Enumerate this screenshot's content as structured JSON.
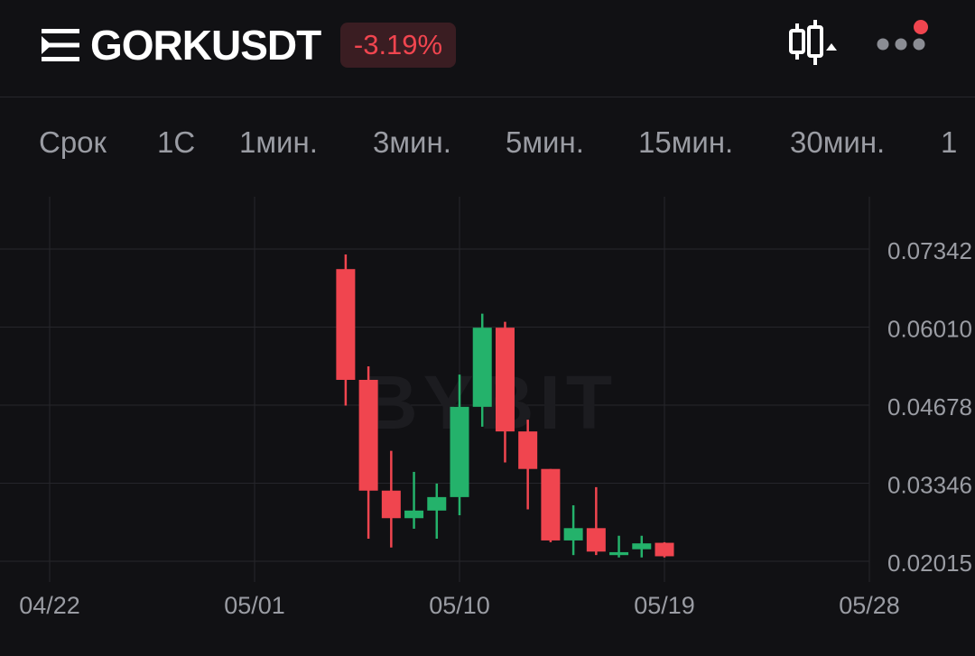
{
  "header": {
    "symbol": "GORKUSDT",
    "change": "-3.19%",
    "icons": [
      "menu-icon",
      "candlestick-chart-icon",
      "more-icon"
    ]
  },
  "tabs": [
    {
      "label": "Срок"
    },
    {
      "label": "1С"
    },
    {
      "label": "1мин."
    },
    {
      "label": "3мин."
    },
    {
      "label": "5мин."
    },
    {
      "label": "15мин."
    },
    {
      "label": "30мин."
    },
    {
      "label": "1"
    }
  ],
  "colors": {
    "background": "#111114",
    "up": "#24b26b",
    "down": "#f0454f",
    "grid": "#26262b",
    "axis_text": "#9a9ca3"
  },
  "chart_data": {
    "type": "candlestick",
    "watermark": "BYBIT",
    "x_ticks": [
      "04/22",
      "05/01",
      "05/10",
      "05/19",
      "05/28"
    ],
    "x_tick_dates": [
      "2025-04-22",
      "2025-05-01",
      "2025-05-10",
      "2025-05-19",
      "2025-05-28"
    ],
    "y_ticks": [
      "0.07342",
      "0.06010",
      "0.04678",
      "0.03346",
      "0.02015"
    ],
    "y_tick_values": [
      0.07342,
      0.0601,
      0.04678,
      0.03346,
      0.02015
    ],
    "candles": [
      {
        "date": "2025-05-05",
        "open": 0.07,
        "high": 0.0725,
        "low": 0.0467,
        "close": 0.0511
      },
      {
        "date": "2025-05-06",
        "open": 0.0511,
        "high": 0.0534,
        "low": 0.024,
        "close": 0.0322
      },
      {
        "date": "2025-05-07",
        "open": 0.0322,
        "high": 0.039,
        "low": 0.0225,
        "close": 0.0275
      },
      {
        "date": "2025-05-08",
        "open": 0.0275,
        "high": 0.0354,
        "low": 0.0257,
        "close": 0.0288
      },
      {
        "date": "2025-05-09",
        "open": 0.0288,
        "high": 0.0334,
        "low": 0.024,
        "close": 0.0311
      },
      {
        "date": "2025-05-10",
        "open": 0.0311,
        "high": 0.052,
        "low": 0.028,
        "close": 0.0465
      },
      {
        "date": "2025-05-11",
        "open": 0.0465,
        "high": 0.0624,
        "low": 0.0431,
        "close": 0.06
      },
      {
        "date": "2025-05-12",
        "open": 0.06,
        "high": 0.061,
        "low": 0.037,
        "close": 0.0423
      },
      {
        "date": "2025-05-13",
        "open": 0.0423,
        "high": 0.0443,
        "low": 0.029,
        "close": 0.0359
      },
      {
        "date": "2025-05-14",
        "open": 0.0359,
        "high": 0.0359,
        "low": 0.0234,
        "close": 0.0237
      },
      {
        "date": "2025-05-15",
        "open": 0.0237,
        "high": 0.0297,
        "low": 0.0212,
        "close": 0.0258
      },
      {
        "date": "2025-05-16",
        "open": 0.0258,
        "high": 0.0328,
        "low": 0.0212,
        "close": 0.0218
      },
      {
        "date": "2025-05-17",
        "open": 0.0212,
        "high": 0.0245,
        "low": 0.0208,
        "close": 0.0217
      },
      {
        "date": "2025-05-18",
        "open": 0.0222,
        "high": 0.0245,
        "low": 0.0208,
        "close": 0.0232
      },
      {
        "date": "2025-05-19",
        "open": 0.0233,
        "high": 0.0234,
        "low": 0.0208,
        "close": 0.021
      }
    ]
  }
}
